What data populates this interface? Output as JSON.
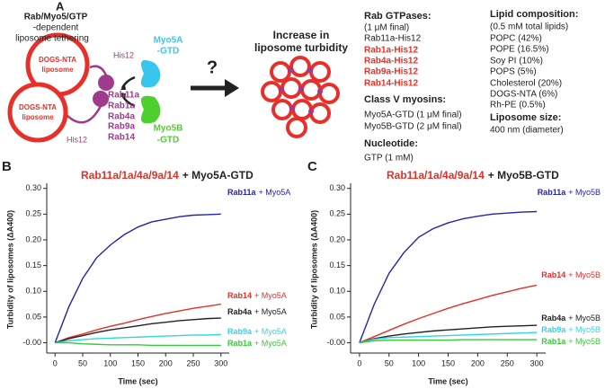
{
  "panel_a": {
    "letter": "A",
    "heading": [
      "Rab/Myo5/GTP",
      "-dependent",
      "liposome tethering"
    ],
    "liposome": [
      "DOGS-NTA",
      "liposome"
    ],
    "his_tag": "His12",
    "rabs": [
      "Rab11a",
      "Rab1a",
      "Rab4a",
      "Rab9a",
      "Rab14"
    ],
    "myo5a": [
      "Myo5A",
      "-GTD"
    ],
    "myo5b": [
      "Myo5B",
      "-GTD"
    ],
    "question": "?",
    "result": [
      "Increase in",
      "liposome turbidity"
    ],
    "conditions": {
      "rab_heading": "Rab GTPases:",
      "rab_items": [
        "(1 μM final)",
        "Rab11a-His12"
      ],
      "rab_red_items": [
        "Rab1a-His12",
        "Rab4a-His12",
        "Rab9a-His12",
        "Rab14-His12"
      ],
      "myosin_heading": "Class V myosins:",
      "myosin_items": [
        "Myo5A-GTD (1 μM final)",
        "Myo5B-GTD (2 μM final)"
      ],
      "nucleotide_heading": "Nucleotide:",
      "nucleotide_items": [
        "GTP (1 mM)"
      ],
      "lipid_heading": "Lipid composition:",
      "lipid_items": [
        "(0.5 mM total lipids)",
        "POPC (42%)",
        "POPE (16.5%)",
        "Soy PI (10%)",
        "POPS (5%)",
        "Cholesterol (20%)",
        "DOGS-NTA (6%)",
        "Rh-PE (0.5%)"
      ],
      "size_heading": "Liposome size:",
      "size_items": [
        "400 nm (diameter)"
      ]
    }
  },
  "chart_data": [
    {
      "type": "line",
      "panel": "B",
      "title_parts": [
        "Rab11a/1a/4a/9a/14",
        "+ Myo5A-GTD"
      ],
      "x_label": "Time (sec)",
      "y_label": "Turbidity of liposomes (ΔA400)",
      "x": [
        0,
        25,
        50,
        75,
        100,
        125,
        150,
        175,
        200,
        225,
        250,
        275,
        300
      ],
      "xlim": [
        -15,
        315
      ],
      "xticks": [
        0,
        50,
        100,
        150,
        200,
        250,
        300
      ],
      "ylim": [
        -0.02,
        0.31
      ],
      "yticks": [
        {
          "value": 0,
          "label": "-0.00"
        },
        {
          "value": 0.05,
          "label": "0.05"
        },
        {
          "value": 0.1,
          "label": "0.10"
        },
        {
          "value": 0.15,
          "label": "0.15"
        },
        {
          "value": 0.2,
          "label": "0.20"
        },
        {
          "value": 0.25,
          "label": "0.25"
        },
        {
          "value": 0.3,
          "label": "0.30"
        }
      ],
      "series": [
        {
          "name": "Rab11a",
          "label_suffix": "+ Myo5A",
          "color": "#2424a8",
          "values": [
            0,
            0.07,
            0.125,
            0.165,
            0.19,
            0.21,
            0.225,
            0.235,
            0.24,
            0.245,
            0.248,
            0.249,
            0.25
          ]
        },
        {
          "name": "Rab14",
          "label_suffix": "+ Myo5A",
          "color": "#e0302a",
          "values": [
            0,
            0.01,
            0.017,
            0.025,
            0.032,
            0.038,
            0.045,
            0.051,
            0.057,
            0.062,
            0.067,
            0.071,
            0.075
          ]
        },
        {
          "name": "Rab4a",
          "label_suffix": "+ Myo5A",
          "color": "#222222",
          "values": [
            0,
            0.008,
            0.014,
            0.02,
            0.025,
            0.029,
            0.033,
            0.037,
            0.04,
            0.043,
            0.045,
            0.047,
            0.048
          ]
        },
        {
          "name": "Rab9a",
          "label_suffix": "+ Myo5A",
          "color": "#33d4e6",
          "values": [
            0,
            0.004,
            0.006,
            0.008,
            0.009,
            0.01,
            0.011,
            0.012,
            0.013,
            0.014,
            0.015,
            0.015,
            0.016
          ]
        },
        {
          "name": "Rab1a",
          "label_suffix": "+ Myo5A",
          "color": "#3cc83c",
          "values": [
            0,
            0,
            -0.002,
            -0.003,
            -0.004,
            -0.004,
            -0.004,
            -0.005,
            -0.005,
            -0.005,
            -0.005,
            -0.005,
            -0.005
          ]
        }
      ]
    },
    {
      "type": "line",
      "panel": "C",
      "title_parts": [
        "Rab11a/1a/4a/9a/14",
        "+ Myo5B-GTD"
      ],
      "x_label": "Time (sec)",
      "y_label": "Turbidity of liposomes (ΔA400)",
      "x": [
        0,
        25,
        50,
        75,
        100,
        125,
        150,
        175,
        200,
        225,
        250,
        275,
        300
      ],
      "xlim": [
        -15,
        315
      ],
      "xticks": [
        0,
        50,
        100,
        150,
        200,
        250,
        300
      ],
      "ylim": [
        -0.02,
        0.31
      ],
      "yticks": [
        {
          "value": 0,
          "label": "-0.00"
        },
        {
          "value": 0.05,
          "label": "0.05"
        },
        {
          "value": 0.1,
          "label": "0.10"
        },
        {
          "value": 0.15,
          "label": "0.15"
        },
        {
          "value": 0.2,
          "label": "0.20"
        },
        {
          "value": 0.25,
          "label": "0.25"
        },
        {
          "value": 0.3,
          "label": "0.30"
        }
      ],
      "series": [
        {
          "name": "Rab11a",
          "label_suffix": "+ Myo5B",
          "color": "#2424a8",
          "values": [
            0,
            0.075,
            0.135,
            0.175,
            0.205,
            0.222,
            0.233,
            0.241,
            0.246,
            0.25,
            0.252,
            0.254,
            0.255
          ]
        },
        {
          "name": "Rab14",
          "label_suffix": "+ Myo5B",
          "color": "#e0302a",
          "values": [
            0,
            0.012,
            0.024,
            0.036,
            0.047,
            0.057,
            0.067,
            0.076,
            0.084,
            0.092,
            0.099,
            0.106,
            0.112
          ]
        },
        {
          "name": "Rab4a",
          "label_suffix": "+ Myo5B",
          "color": "#222222",
          "values": [
            0,
            0.008,
            0.013,
            0.017,
            0.02,
            0.023,
            0.025,
            0.027,
            0.029,
            0.031,
            0.032,
            0.033,
            0.034
          ]
        },
        {
          "name": "Rab9a",
          "label_suffix": "+ Myo5B",
          "color": "#33d4e6",
          "values": [
            0,
            0.007,
            0.01,
            0.011,
            0.012,
            0.013,
            0.014,
            0.015,
            0.016,
            0.017,
            0.018,
            0.019,
            0.02
          ]
        },
        {
          "name": "Rab1a",
          "label_suffix": "+ Myo5B",
          "color": "#3cc83c",
          "values": [
            0,
            0.004,
            0.005,
            0.005,
            0.005,
            0.005,
            0.005,
            0.006,
            0.006,
            0.006,
            0.006,
            0.006,
            0.006
          ]
        }
      ]
    }
  ]
}
